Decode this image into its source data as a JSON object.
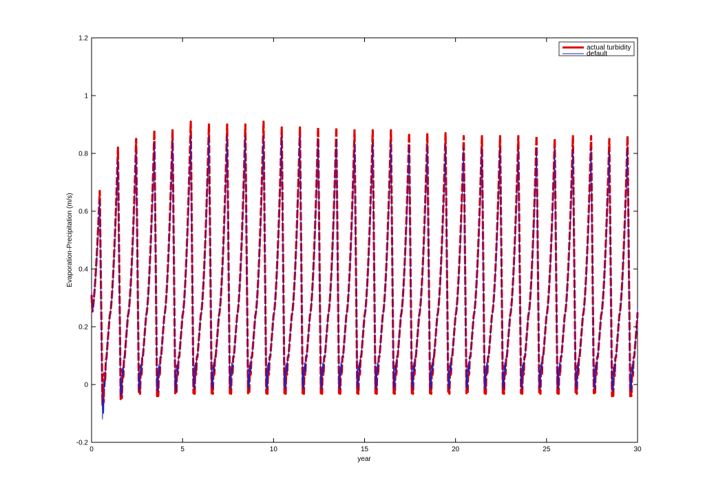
{
  "chart_data": {
    "type": "line",
    "title": "",
    "xlabel": "year",
    "ylabel": "Evaporation-Precipitation (m/s)",
    "xlim": [
      0,
      30
    ],
    "ylim": [
      -0.2,
      1.2
    ],
    "xticks": [
      0,
      5,
      10,
      15,
      20,
      25,
      30
    ],
    "yticks": [
      -0.2,
      0,
      0.2,
      0.4,
      0.6,
      0.8,
      1,
      1.2
    ],
    "xtick_labels": [
      "0",
      "5",
      "10",
      "15",
      "20",
      "25",
      "30"
    ],
    "ytick_labels": [
      "-0.2",
      "0",
      "0.2",
      "0.4",
      "0.6",
      "0.8",
      "1",
      "1.2"
    ],
    "grid": false,
    "legend_position": "top-right",
    "period_years": 1,
    "series": [
      {
        "name": "actual turbidity",
        "color": "#e00000",
        "peaks": [
          0.67,
          0.82,
          0.85,
          0.88,
          0.88,
          0.91,
          0.9,
          0.9,
          0.9,
          0.91,
          0.89,
          0.89,
          0.89,
          0.89,
          0.88,
          0.88,
          0.88,
          0.87,
          0.87,
          0.87,
          0.86,
          0.86,
          0.86,
          0.86,
          0.86,
          0.85,
          0.86,
          0.86,
          0.85,
          0.86
        ],
        "troughs": [
          -0.07,
          -0.05,
          -0.03,
          -0.04,
          -0.03,
          -0.03,
          -0.03,
          -0.03,
          -0.03,
          -0.03,
          -0.03,
          -0.03,
          -0.03,
          -0.03,
          -0.03,
          -0.03,
          -0.03,
          -0.03,
          -0.03,
          -0.03,
          -0.03,
          -0.03,
          -0.03,
          -0.03,
          -0.03,
          -0.03,
          -0.03,
          -0.03,
          -0.04,
          -0.04
        ],
        "start": 0.31,
        "end": 0.25
      },
      {
        "name": "default",
        "color": "#2020c0",
        "peaks": [
          0.64,
          0.78,
          0.81,
          0.84,
          0.85,
          0.86,
          0.86,
          0.86,
          0.86,
          0.86,
          0.86,
          0.86,
          0.85,
          0.85,
          0.84,
          0.84,
          0.84,
          0.83,
          0.83,
          0.83,
          0.82,
          0.82,
          0.82,
          0.82,
          0.82,
          0.82,
          0.82,
          0.82,
          0.81,
          0.82
        ],
        "troughs": [
          -0.12,
          -0.04,
          -0.02,
          -0.02,
          -0.02,
          -0.01,
          -0.01,
          -0.01,
          -0.01,
          -0.01,
          -0.01,
          -0.01,
          -0.01,
          -0.01,
          -0.01,
          -0.01,
          -0.01,
          -0.01,
          -0.01,
          -0.01,
          -0.01,
          -0.01,
          -0.01,
          -0.01,
          -0.01,
          -0.01,
          -0.01,
          -0.01,
          -0.02,
          -0.02
        ],
        "start": 0.33,
        "end": 0.26
      }
    ]
  }
}
